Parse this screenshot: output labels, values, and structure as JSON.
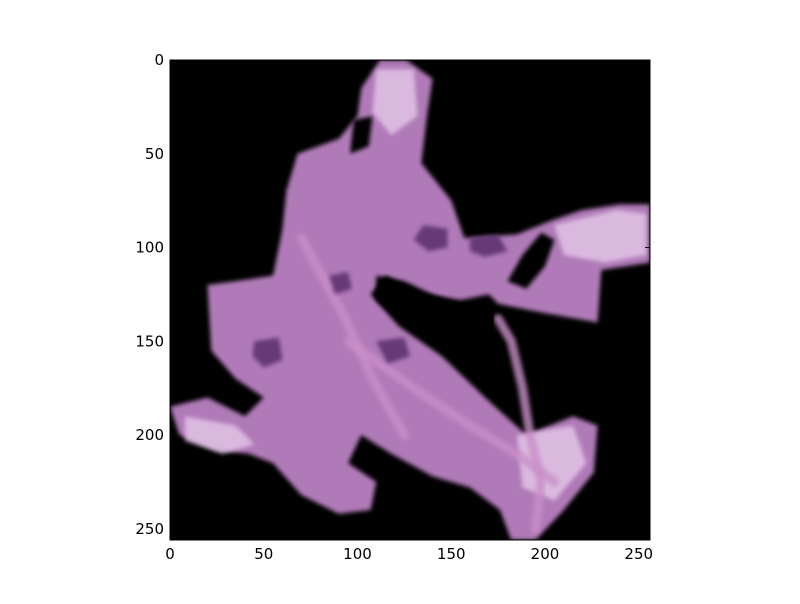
{
  "chart_data": {
    "type": "heatmap",
    "title": "",
    "xlabel": "",
    "ylabel": "",
    "xlim": [
      0,
      256
    ],
    "ylim": [
      256,
      0
    ],
    "x_ticks": [
      0,
      50,
      100,
      150,
      200,
      250
    ],
    "y_ticks": [
      0,
      50,
      100,
      150,
      200,
      250
    ],
    "x_tick_labels": [
      "0",
      "50",
      "100",
      "150",
      "200",
      "250"
    ],
    "y_tick_labels": [
      "0",
      "50",
      "100",
      "150",
      "200",
      "250"
    ],
    "grid": false,
    "background_color": "#000000",
    "tissue_color": "#b07ab8",
    "tissue_light_color": "#e2c4e6",
    "nuclei_color": "#5a2f6c",
    "tissue_region": [
      [
        112,
        0
      ],
      [
        126,
        0
      ],
      [
        140,
        10
      ],
      [
        137,
        30
      ],
      [
        134,
        55
      ],
      [
        150,
        75
      ],
      [
        157,
        95
      ],
      [
        185,
        93
      ],
      [
        205,
        85
      ],
      [
        220,
        80
      ],
      [
        240,
        77
      ],
      [
        256,
        77
      ],
      [
        256,
        108
      ],
      [
        230,
        112
      ],
      [
        228,
        140
      ],
      [
        200,
        135
      ],
      [
        175,
        130
      ],
      [
        170,
        125
      ],
      [
        155,
        128
      ],
      [
        135,
        125
      ],
      [
        115,
        115
      ],
      [
        107,
        125
      ],
      [
        122,
        142
      ],
      [
        145,
        158
      ],
      [
        168,
        180
      ],
      [
        190,
        200
      ],
      [
        215,
        190
      ],
      [
        228,
        195
      ],
      [
        226,
        220
      ],
      [
        210,
        240
      ],
      [
        195,
        256
      ],
      [
        182,
        256
      ],
      [
        176,
        240
      ],
      [
        160,
        228
      ],
      [
        140,
        222
      ],
      [
        118,
        210
      ],
      [
        102,
        200
      ],
      [
        95,
        215
      ],
      [
        110,
        225
      ],
      [
        107,
        240
      ],
      [
        90,
        242
      ],
      [
        70,
        232
      ],
      [
        55,
        215
      ],
      [
        42,
        210
      ],
      [
        25,
        208
      ],
      [
        5,
        200
      ],
      [
        0,
        185
      ],
      [
        20,
        180
      ],
      [
        40,
        190
      ],
      [
        50,
        180
      ],
      [
        35,
        170
      ],
      [
        22,
        155
      ],
      [
        20,
        120
      ],
      [
        35,
        118
      ],
      [
        55,
        115
      ],
      [
        60,
        90
      ],
      [
        62,
        70
      ],
      [
        68,
        50
      ],
      [
        90,
        42
      ],
      [
        100,
        30
      ],
      [
        102,
        15
      ]
    ],
    "black_holes": [
      [
        [
          98,
          32
        ],
        [
          108,
          30
        ],
        [
          106,
          46
        ],
        [
          96,
          50
        ]
      ],
      [
        [
          110,
          115
        ],
        [
          125,
          118
        ],
        [
          140,
          125
        ],
        [
          160,
          132
        ],
        [
          172,
          140
        ],
        [
          150,
          145
        ],
        [
          125,
          140
        ],
        [
          110,
          128
        ]
      ],
      [
        [
          180,
          118
        ],
        [
          188,
          104
        ],
        [
          198,
          92
        ],
        [
          205,
          96
        ],
        [
          200,
          110
        ],
        [
          190,
          122
        ]
      ]
    ],
    "light_regions": [
      [
        [
          205,
          88
        ],
        [
          238,
          80
        ],
        [
          254,
          82
        ],
        [
          254,
          104
        ],
        [
          232,
          108
        ],
        [
          210,
          104
        ]
      ],
      [
        [
          110,
          5
        ],
        [
          130,
          5
        ],
        [
          132,
          30
        ],
        [
          118,
          40
        ],
        [
          108,
          28
        ]
      ],
      [
        [
          185,
          200
        ],
        [
          215,
          195
        ],
        [
          222,
          215
        ],
        [
          205,
          235
        ],
        [
          188,
          228
        ]
      ],
      [
        [
          8,
          190
        ],
        [
          35,
          195
        ],
        [
          45,
          205
        ],
        [
          28,
          210
        ],
        [
          8,
          203
        ]
      ]
    ],
    "nuclei": [
      [
        [
          135,
          88
        ],
        [
          148,
          90
        ],
        [
          148,
          100
        ],
        [
          138,
          102
        ],
        [
          130,
          96
        ]
      ],
      [
        [
          160,
          95
        ],
        [
          175,
          93
        ],
        [
          180,
          102
        ],
        [
          168,
          105
        ],
        [
          160,
          102
        ]
      ],
      [
        [
          45,
          150
        ],
        [
          58,
          148
        ],
        [
          60,
          160
        ],
        [
          50,
          164
        ],
        [
          44,
          158
        ]
      ],
      [
        [
          110,
          150
        ],
        [
          125,
          148
        ],
        [
          128,
          158
        ],
        [
          116,
          162
        ]
      ],
      [
        [
          85,
          115
        ],
        [
          95,
          113
        ],
        [
          97,
          122
        ],
        [
          88,
          125
        ]
      ]
    ],
    "filaments": [
      [
        [
          175,
          138
        ],
        [
          182,
          150
        ],
        [
          188,
          175
        ],
        [
          192,
          200
        ],
        [
          198,
          225
        ],
        [
          195,
          250
        ]
      ],
      [
        [
          95,
          150
        ],
        [
          130,
          175
        ],
        [
          160,
          195
        ],
        [
          185,
          210
        ],
        [
          205,
          225
        ]
      ],
      [
        [
          70,
          95
        ],
        [
          92,
          135
        ],
        [
          108,
          170
        ],
        [
          125,
          200
        ]
      ]
    ]
  }
}
